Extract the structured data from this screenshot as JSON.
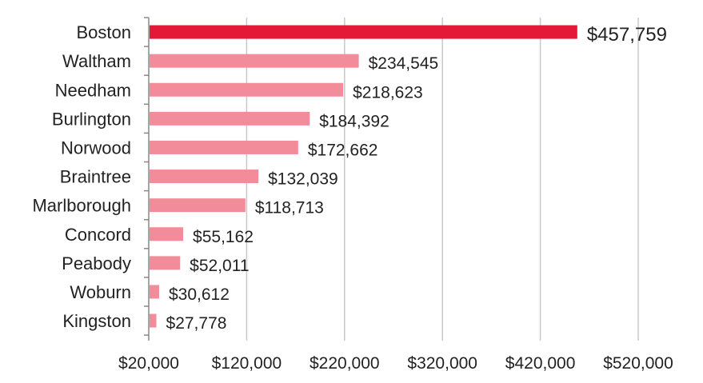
{
  "chart_data": {
    "type": "bar",
    "orientation": "horizontal",
    "categories": [
      "Boston",
      "Waltham",
      "Needham",
      "Burlington",
      "Norwood",
      "Braintree",
      "Marlborough",
      "Concord",
      "Peabody",
      "Woburn",
      "Kingston"
    ],
    "values": [
      457759,
      234545,
      218623,
      184392,
      172662,
      132039,
      118713,
      55162,
      52011,
      30612,
      27778
    ],
    "data_labels": [
      "$457,759",
      "$234,545",
      "$218,623",
      "$184,392",
      "$172,662",
      "$132,039",
      "$118,713",
      "$55,162",
      "$52,011",
      "$30,612",
      "$27,778"
    ],
    "xticks": [
      20000,
      120000,
      220000,
      320000,
      420000,
      520000
    ],
    "xtick_labels": [
      "$20,000",
      "$120,000",
      "$220,000",
      "$320,000",
      "$420,000",
      "$520,000"
    ],
    "xlim": [
      20000,
      520000
    ],
    "grid": "vertical",
    "legend": "none",
    "colors": {
      "highlight": "#e31937",
      "bar": "#f28c9b",
      "grid": "#c8c8c8",
      "axis": "#888888"
    },
    "highlight_index": 0
  }
}
